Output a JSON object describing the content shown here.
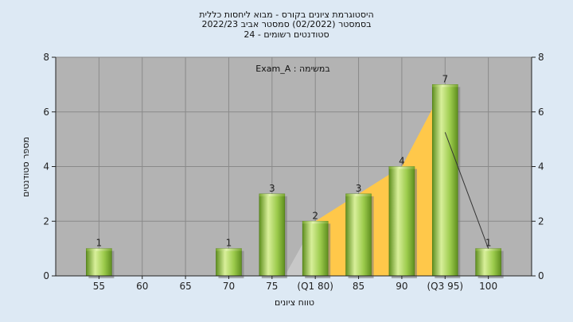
{
  "chart_data": {
    "type": "bar",
    "title_lines": [
      "היסטוגרמת ציונים בקורס - מבוא ליחסות כללית",
      "בסמסטר  (02/2022)  סמסטר אביב 2022/23",
      "סטודנטים רשומים - 24"
    ],
    "annotation": "במשימה : Exam_A",
    "xlabel": "טווח ציונים",
    "ylabel": "מספר סטודנטים",
    "categories": [
      "55",
      "60",
      "65",
      "70",
      "75",
      "(Q1 80)",
      "85",
      "90",
      "(Q3 95)",
      "100"
    ],
    "values": [
      1,
      0,
      0,
      1,
      3,
      2,
      3,
      4,
      7,
      1
    ],
    "value_labels": [
      "1",
      "",
      "",
      "1",
      "3",
      "2",
      "3",
      "4",
      "7",
      "1"
    ],
    "ylim": [
      0,
      8
    ],
    "yticks": [
      0,
      2,
      4,
      6,
      8
    ],
    "grid": true,
    "colors": {
      "background": "#dde9f4",
      "plot_area": "#b3b3b3",
      "grid": "#8a8a8a",
      "bar_light": "#d8ef9a",
      "bar_mid": "#9ccb4c",
      "bar_dark": "#5f8f1f",
      "iqr_fill": "#ffc84a",
      "iqr_fill_light": "#c8c8c8",
      "line": "#333333"
    }
  }
}
